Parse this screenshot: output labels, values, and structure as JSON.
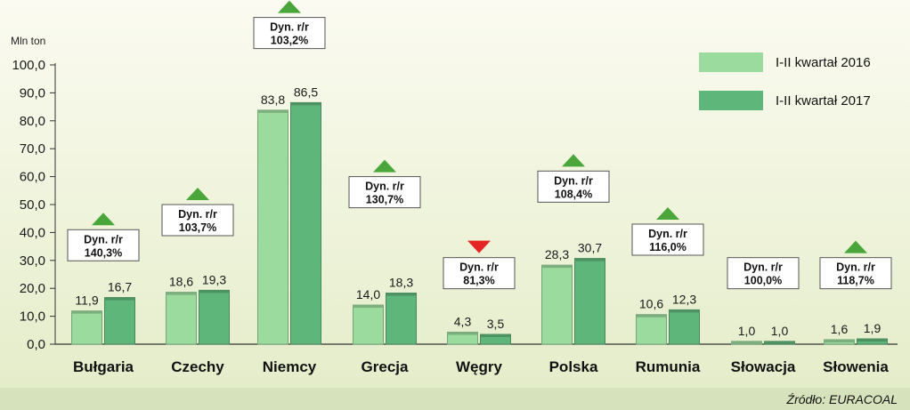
{
  "chart_data": {
    "type": "bar",
    "ylabel": "Mln ton",
    "ylim": [
      0,
      100
    ],
    "ytick_step": 10,
    "ytick_labels": [
      "0,0",
      "10,0",
      "20,0",
      "30,0",
      "40,0",
      "50,0",
      "60,0",
      "70,0",
      "80,0",
      "90,0",
      "100,0"
    ],
    "categories": [
      "Bułgaria",
      "Czechy",
      "Niemcy",
      "Grecja",
      "Węgry",
      "Polska",
      "Rumunia",
      "Słowacja",
      "Słowenia"
    ],
    "series": [
      {
        "name": "I-II kwartał 2016",
        "color": "#9bdb9d",
        "values": [
          11.9,
          18.6,
          83.8,
          14.0,
          4.3,
          28.3,
          10.6,
          1.0,
          1.6
        ],
        "labels": [
          "11,9",
          "18,6",
          "83,8",
          "14,0",
          "4,3",
          "28,3",
          "10,6",
          "1,0",
          "1,6"
        ]
      },
      {
        "name": "I-II kwartał 2017",
        "color": "#5fb67b",
        "values": [
          16.7,
          19.3,
          86.5,
          18.3,
          3.5,
          30.7,
          12.3,
          1.0,
          1.9
        ],
        "labels": [
          "16,7",
          "19,3",
          "86,5",
          "18,3",
          "3,5",
          "30,7",
          "12,3",
          "1,0",
          "1,9"
        ]
      }
    ],
    "dynamics": {
      "label": "Dyn. r/r",
      "values": [
        "140,3%",
        "103,7%",
        "103,2%",
        "130,7%",
        "81,3%",
        "108,4%",
        "116,0%",
        "100,0%",
        "118,7%"
      ],
      "trend": [
        "up",
        "up",
        "up",
        "up",
        "down",
        "up",
        "up",
        "none",
        "up"
      ],
      "up_color": "#4aa63a",
      "down_color": "#e52424"
    },
    "legend_position": "top-right",
    "source": "Źródło: EURACOAL"
  }
}
